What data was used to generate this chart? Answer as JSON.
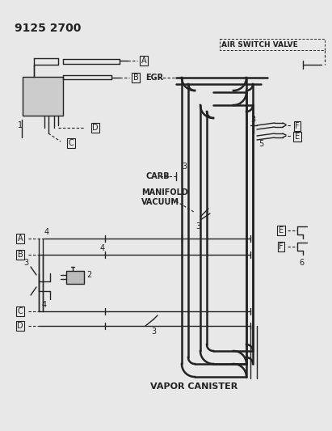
{
  "bg_color": "#e8e8e8",
  "line_color": "#222222",
  "title": "9125 2700",
  "label_asv": "AIR SWITCH VALVE",
  "label_egr": "EGR",
  "label_carb": "CARB",
  "label_mv1": "MANIFOLD",
  "label_mv2": "VACUUM",
  "label_vc": "VAPOR CANISTER",
  "pipe_lw": 1.8,
  "thin_lw": 1.0,
  "dash_lw": 0.8,
  "fig_w": 4.11,
  "fig_h": 5.33,
  "dpi": 100
}
